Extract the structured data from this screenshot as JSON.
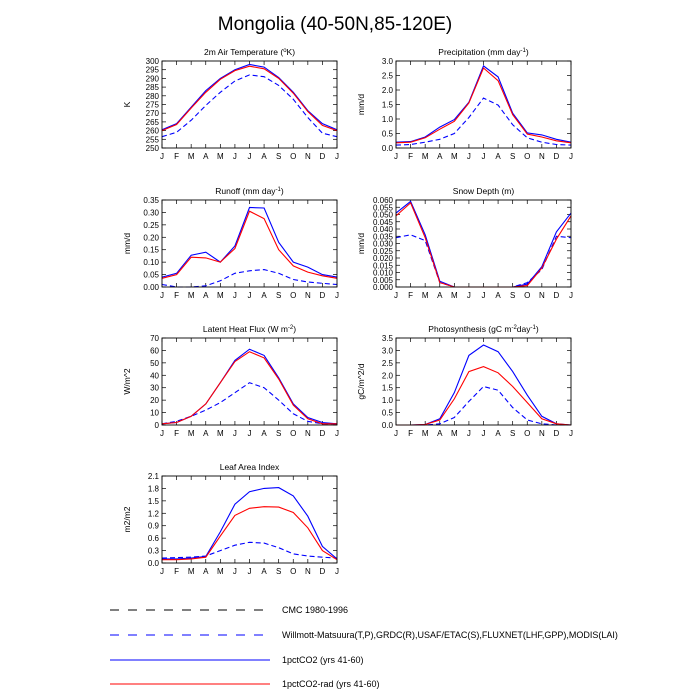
{
  "title": "Mongolia (40-50N,85-120E)",
  "months": [
    "J",
    "F",
    "M",
    "A",
    "M",
    "J",
    "J",
    "A",
    "S",
    "O",
    "N",
    "D",
    "J"
  ],
  "series_styles": [
    {
      "key": "cmc",
      "color": "#0000ff",
      "dashed": true
    },
    {
      "key": "obs",
      "color": "#0000ff",
      "dashed": true
    },
    {
      "key": "co2",
      "color": "#0000ff",
      "dashed": false
    },
    {
      "key": "rad",
      "color": "#ff0000",
      "dashed": false
    }
  ],
  "legend": [
    {
      "label": "CMC 1980-1996",
      "color": "#000000",
      "dashed": true
    },
    {
      "label": "Willmott-Matsuura(T,P),GRDC(R),USAF/ETAC(S),FLUXNET(LHF,GPP),MODIS(LAI)",
      "color": "#0000ff",
      "dashed": true
    },
    {
      "label": "1pctCO2 (yrs 41-60)",
      "color": "#0000ff",
      "dashed": false
    },
    {
      "label": "1pctCO2-rad (yrs 41-60)",
      "color": "#ff0000",
      "dashed": false
    }
  ],
  "chart_data": [
    {
      "type": "line",
      "title": "2m Air Temperature (",
      "title_sup": "o",
      "title_end": "K)",
      "ylabel": "K",
      "ylim": [
        250,
        300
      ],
      "yticks": [
        "250",
        "255",
        "260",
        "265",
        "270",
        "275",
        "280",
        "285",
        "290",
        "295",
        "300"
      ],
      "series": [
        {
          "style": "obs",
          "values": [
            256.5,
            259.0,
            266.0,
            274.5,
            282.0,
            288.5,
            292.0,
            291.0,
            286.0,
            278.0,
            267.5,
            258.5,
            256.5
          ]
        },
        {
          "style": "co2",
          "values": [
            260.5,
            264.0,
            273.5,
            283.0,
            290.0,
            295.0,
            298.0,
            296.5,
            290.5,
            282.0,
            271.5,
            264.0,
            260.5
          ]
        },
        {
          "style": "rad",
          "values": [
            260.0,
            263.5,
            273.0,
            282.0,
            289.5,
            294.5,
            297.0,
            295.5,
            290.0,
            281.5,
            271.0,
            263.0,
            260.0
          ]
        }
      ]
    },
    {
      "type": "line",
      "title": "Precipitation (mm day",
      "title_sup": "-1",
      "title_end": ")",
      "ylabel": "mm/d",
      "ylim": [
        0,
        3
      ],
      "yticks": [
        "0.0",
        "0.5",
        "1.0",
        "1.5",
        "2.0",
        "2.5",
        "3.0"
      ],
      "series": [
        {
          "style": "obs",
          "values": [
            0.1,
            0.12,
            0.2,
            0.3,
            0.5,
            1.05,
            1.72,
            1.48,
            0.8,
            0.35,
            0.2,
            0.12,
            0.1
          ]
        },
        {
          "style": "co2",
          "values": [
            0.2,
            0.22,
            0.38,
            0.72,
            0.98,
            1.58,
            2.83,
            2.45,
            1.2,
            0.52,
            0.45,
            0.3,
            0.2
          ]
        },
        {
          "style": "rad",
          "values": [
            0.18,
            0.2,
            0.35,
            0.65,
            0.92,
            1.55,
            2.76,
            2.32,
            1.15,
            0.48,
            0.38,
            0.25,
            0.18
          ]
        }
      ]
    },
    {
      "type": "line",
      "title": "Runoff (mm day",
      "title_sup": "-1",
      "title_end": ")",
      "ylabel": "mm/d",
      "ylim": [
        0,
        0.35
      ],
      "yticks": [
        "0.00",
        "0.05",
        "0.10",
        "0.15",
        "0.20",
        "0.25",
        "0.30",
        "0.35"
      ],
      "series": [
        {
          "style": "obs",
          "values": [
            0.01,
            0.0,
            0.0,
            0.005,
            0.025,
            0.055,
            0.065,
            0.07,
            0.055,
            0.03,
            0.02,
            0.015,
            0.01
          ]
        },
        {
          "style": "co2",
          "values": [
            0.04,
            0.055,
            0.128,
            0.14,
            0.1,
            0.165,
            0.32,
            0.318,
            0.18,
            0.1,
            0.08,
            0.05,
            0.04
          ]
        },
        {
          "style": "rad",
          "values": [
            0.035,
            0.05,
            0.12,
            0.117,
            0.1,
            0.155,
            0.305,
            0.275,
            0.15,
            0.085,
            0.06,
            0.045,
            0.035
          ]
        }
      ]
    },
    {
      "type": "line",
      "title": "Snow Depth (m)",
      "title_sup": "",
      "title_end": "",
      "ylabel": "mm/d",
      "ylim": [
        0,
        0.06
      ],
      "yticks": [
        "0.000",
        "0.005",
        "0.010",
        "0.015",
        "0.020",
        "0.025",
        "0.030",
        "0.035",
        "0.040",
        "0.045",
        "0.050",
        "0.055",
        "0.060"
      ],
      "series": [
        {
          "style": "obs",
          "values": [
            0.034,
            0.036,
            0.032,
            0.003,
            0.0,
            0.0,
            0.0,
            0.0,
            0.0,
            0.003,
            0.012,
            0.035,
            0.034
          ]
        },
        {
          "style": "co2",
          "values": [
            0.051,
            0.059,
            0.036,
            0.004,
            0.0,
            0.0,
            0.0,
            0.0,
            0.0,
            0.002,
            0.014,
            0.038,
            0.051
          ]
        },
        {
          "style": "rad",
          "values": [
            0.049,
            0.058,
            0.034,
            0.003,
            0.0,
            0.0,
            0.0,
            0.0,
            0.0,
            0.001,
            0.013,
            0.033,
            0.049
          ]
        }
      ]
    },
    {
      "type": "line",
      "title": "Latent Heat Flux (W m",
      "title_sup": "-2",
      "title_end": ")",
      "ylabel": "W/m^2",
      "ylim": [
        0,
        70
      ],
      "yticks": [
        "0",
        "10",
        "20",
        "30",
        "40",
        "50",
        "60",
        "70"
      ],
      "series": [
        {
          "style": "obs",
          "values": [
            1,
            3,
            7,
            12,
            18,
            26,
            34,
            30,
            20,
            9,
            3,
            1,
            1
          ]
        },
        {
          "style": "co2",
          "values": [
            1,
            2,
            7,
            17,
            34,
            52,
            61,
            56,
            38,
            17,
            6,
            2,
            1
          ]
        },
        {
          "style": "rad",
          "values": [
            1,
            2,
            7,
            17,
            34,
            51,
            59,
            54,
            37,
            16,
            5,
            1,
            1
          ]
        }
      ]
    },
    {
      "type": "line",
      "title": "Photosynthesis (gC m",
      "title_sup": "-2",
      "title_end": "day",
      "title_sup2": "-1",
      "title_end2": ")",
      "ylabel": "gC/m^2/d",
      "ylim": [
        0,
        3.5
      ],
      "yticks": [
        "0.0",
        "0.5",
        "1.0",
        "1.5",
        "2.0",
        "2.5",
        "3.0",
        "3.5"
      ],
      "series": [
        {
          "style": "obs",
          "values": [
            0.0,
            0.0,
            0.0,
            0.05,
            0.3,
            0.95,
            1.55,
            1.4,
            0.7,
            0.2,
            0.05,
            0.0,
            0.0
          ]
        },
        {
          "style": "co2",
          "values": [
            0.0,
            0.0,
            0.02,
            0.25,
            1.3,
            2.8,
            3.22,
            2.95,
            2.15,
            1.2,
            0.35,
            0.05,
            0.0
          ]
        },
        {
          "style": "rad",
          "values": [
            0.0,
            0.0,
            0.02,
            0.2,
            1.05,
            2.15,
            2.35,
            2.1,
            1.55,
            0.9,
            0.25,
            0.05,
            0.0
          ]
        }
      ]
    },
    {
      "type": "line",
      "title": "Leaf Area Index",
      "title_sup": "",
      "title_end": "",
      "ylabel": "m2/m2",
      "ylim": [
        0,
        2.1
      ],
      "yticks": [
        "0.0",
        "0.3",
        "0.6",
        "0.9",
        "1.2",
        "1.5",
        "1.8",
        "2.1"
      ],
      "series": [
        {
          "style": "obs",
          "values": [
            0.12,
            0.13,
            0.14,
            0.17,
            0.3,
            0.43,
            0.5,
            0.48,
            0.37,
            0.22,
            0.17,
            0.14,
            0.12
          ]
        },
        {
          "style": "co2",
          "values": [
            0.1,
            0.1,
            0.12,
            0.16,
            0.75,
            1.42,
            1.72,
            1.8,
            1.82,
            1.62,
            1.13,
            0.4,
            0.1
          ]
        },
        {
          "style": "rad",
          "values": [
            0.08,
            0.08,
            0.1,
            0.14,
            0.65,
            1.15,
            1.32,
            1.36,
            1.35,
            1.22,
            0.85,
            0.3,
            0.08
          ]
        }
      ]
    }
  ]
}
